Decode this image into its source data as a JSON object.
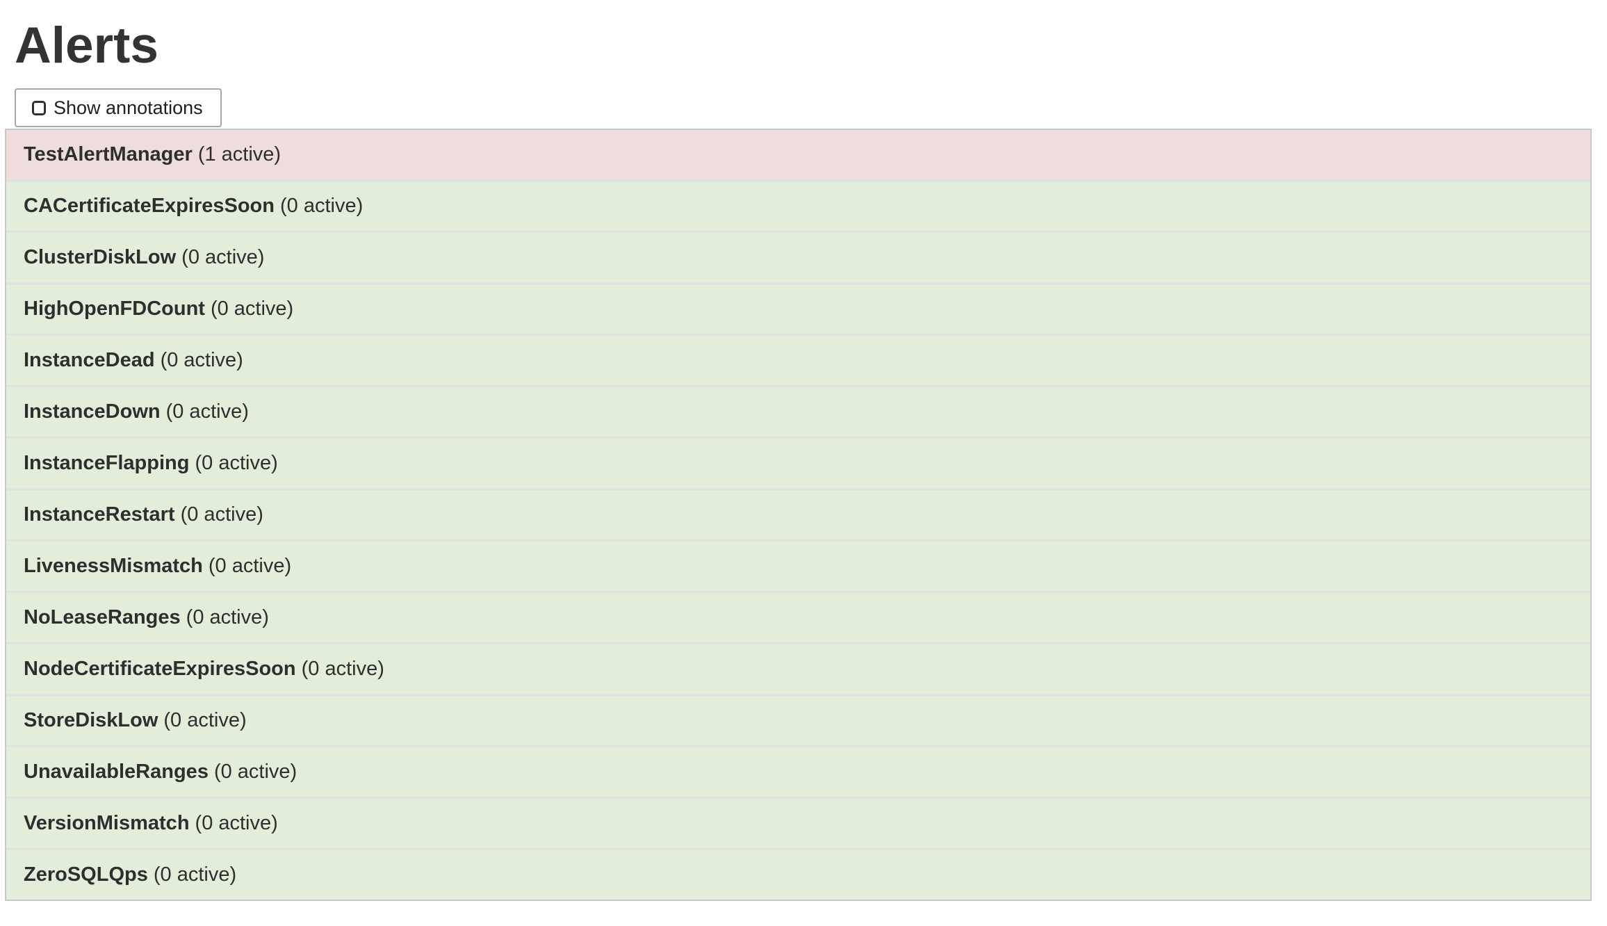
{
  "page": {
    "title": "Alerts"
  },
  "toolbar": {
    "show_annotations_label": "Show annotations",
    "checkbox_checked": false
  },
  "colors": {
    "firing_row_bg": "#efdddd",
    "inactive_row_bg": "#e2eeda",
    "row_divider": "#e2e0e0",
    "table_border": "#c9c9c9",
    "button_border": "#a6a6a6",
    "row_text": "#2e2e2e",
    "title_text": "#333333"
  },
  "alerts": [
    {
      "name": "TestAlertManager",
      "active": 1,
      "count_label": "(1 active)",
      "state": "firing"
    },
    {
      "name": "CACertificateExpiresSoon",
      "active": 0,
      "count_label": "(0 active)",
      "state": "inactive"
    },
    {
      "name": "ClusterDiskLow",
      "active": 0,
      "count_label": "(0 active)",
      "state": "inactive"
    },
    {
      "name": "HighOpenFDCount",
      "active": 0,
      "count_label": "(0 active)",
      "state": "inactive"
    },
    {
      "name": "InstanceDead",
      "active": 0,
      "count_label": "(0 active)",
      "state": "inactive"
    },
    {
      "name": "InstanceDown",
      "active": 0,
      "count_label": "(0 active)",
      "state": "inactive"
    },
    {
      "name": "InstanceFlapping",
      "active": 0,
      "count_label": "(0 active)",
      "state": "inactive"
    },
    {
      "name": "InstanceRestart",
      "active": 0,
      "count_label": "(0 active)",
      "state": "inactive"
    },
    {
      "name": "LivenessMismatch",
      "active": 0,
      "count_label": "(0 active)",
      "state": "inactive"
    },
    {
      "name": "NoLeaseRanges",
      "active": 0,
      "count_label": "(0 active)",
      "state": "inactive"
    },
    {
      "name": "NodeCertificateExpiresSoon",
      "active": 0,
      "count_label": "(0 active)",
      "state": "inactive"
    },
    {
      "name": "StoreDiskLow",
      "active": 0,
      "count_label": "(0 active)",
      "state": "inactive"
    },
    {
      "name": "UnavailableRanges",
      "active": 0,
      "count_label": "(0 active)",
      "state": "inactive"
    },
    {
      "name": "VersionMismatch",
      "active": 0,
      "count_label": "(0 active)",
      "state": "inactive"
    },
    {
      "name": "ZeroSQLQps",
      "active": 0,
      "count_label": "(0 active)",
      "state": "inactive"
    }
  ]
}
